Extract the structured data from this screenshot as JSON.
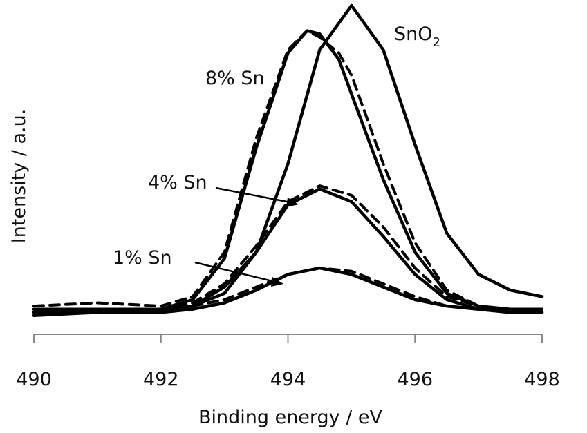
{
  "chart_data": {
    "type": "line",
    "xlabel": "Binding energy / eV",
    "ylabel": "Intensity / a.u.",
    "xlim": [
      490,
      498
    ],
    "ylim": [
      0,
      100
    ],
    "x_ticks": [
      "490",
      "492",
      "494",
      "496",
      "498"
    ],
    "grid": false,
    "legend": "none",
    "annotations": [
      {
        "text": "SnO",
        "subscript": "2",
        "target": "SnO2"
      },
      {
        "text": "8% Sn",
        "target": "8% Sn"
      },
      {
        "text": "4% Sn",
        "target": "4% Sn"
      },
      {
        "text": "1% Sn",
        "target": "1% Sn"
      }
    ],
    "series": [
      {
        "name": "SnO2",
        "style": "solid",
        "x": [
          490,
          491,
          492,
          492.5,
          493,
          493.5,
          494,
          494.5,
          495,
          495.5,
          496,
          496.5,
          497,
          497.5,
          498
        ],
        "y": [
          4,
          4,
          4,
          5,
          9,
          22,
          50,
          86,
          100,
          86,
          56,
          28,
          15,
          10,
          8
        ]
      },
      {
        "name": "8% Sn",
        "style": "solid",
        "x": [
          490,
          491,
          492,
          492.5,
          493,
          493.5,
          494,
          494.3,
          494.5,
          494.8,
          495,
          495.5,
          496,
          496.5,
          497,
          497.5,
          498
        ],
        "y": [
          4,
          4,
          4,
          7,
          20,
          55,
          85,
          92,
          91,
          83,
          72,
          45,
          22,
          9,
          5,
          4,
          4
        ]
      },
      {
        "name": "8% Sn",
        "style": "dashed",
        "x": [
          490,
          491,
          492,
          492.5,
          493,
          493.5,
          494,
          494.3,
          494.5,
          494.8,
          495,
          495.5,
          496,
          496.5,
          497,
          497.5,
          498
        ],
        "y": [
          5,
          6,
          5,
          8,
          22,
          58,
          86,
          92,
          90,
          85,
          78,
          50,
          25,
          10,
          5,
          4,
          4
        ]
      },
      {
        "name": "4% Sn",
        "style": "solid",
        "x": [
          490,
          491,
          492,
          492.5,
          493,
          493.5,
          494,
          494.5,
          495,
          495.5,
          496,
          496.5,
          497,
          497.5,
          498
        ],
        "y": [
          3,
          3,
          3,
          5,
          11,
          22,
          37,
          42,
          38,
          27,
          15,
          7,
          4,
          3,
          3
        ]
      },
      {
        "name": "4% Sn",
        "style": "dashed",
        "x": [
          490,
          491,
          492,
          492.5,
          493,
          493.5,
          494,
          494.5,
          495,
          495.5,
          496,
          496.5,
          497,
          497.5,
          498
        ],
        "y": [
          4,
          4,
          4,
          6,
          12,
          24,
          38,
          43,
          40,
          30,
          17,
          8,
          5,
          4,
          4
        ]
      },
      {
        "name": "1% Sn",
        "style": "solid",
        "x": [
          490,
          491,
          492,
          492.5,
          493,
          493.5,
          494,
          494.5,
          495,
          495.5,
          496,
          496.5,
          497,
          497.5,
          498
        ],
        "y": [
          2,
          3,
          3,
          4,
          6,
          10,
          15,
          17,
          15,
          11,
          7,
          5,
          4,
          3,
          3
        ]
      },
      {
        "name": "1% Sn",
        "style": "dashed",
        "x": [
          490,
          491,
          492,
          492.5,
          493,
          493.5,
          494,
          494.5,
          495,
          495.5,
          496,
          496.5,
          497,
          497.5,
          498
        ],
        "y": [
          4,
          3,
          4,
          5,
          7,
          11,
          15,
          17,
          16,
          12,
          8,
          5,
          4,
          4,
          3
        ]
      }
    ]
  }
}
